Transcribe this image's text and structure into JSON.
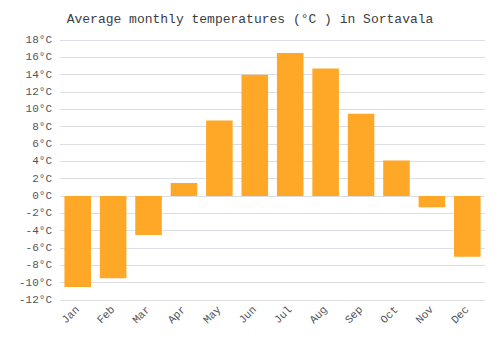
{
  "chart_data": {
    "type": "bar",
    "title": "Average monthly temperatures (°C ) in Sortavala",
    "categories": [
      "Jan",
      "Feb",
      "Mar",
      "Apr",
      "May",
      "Jun",
      "Jul",
      "Aug",
      "Sep",
      "Oct",
      "Nov",
      "Dec"
    ],
    "values": [
      -10.5,
      -9.5,
      -4.5,
      1.5,
      8.7,
      14.0,
      16.5,
      14.7,
      9.5,
      4.1,
      -1.3,
      -7.0
    ],
    "color": "#FFA726",
    "ylim": [
      -12,
      18
    ],
    "yticks": [
      {
        "value": -12,
        "label": "-12°C"
      },
      {
        "value": -10,
        "label": "-10°C"
      },
      {
        "value": -8,
        "label": "-8°C"
      },
      {
        "value": -6,
        "label": "-6°C"
      },
      {
        "value": -4,
        "label": "-4°C"
      },
      {
        "value": -2,
        "label": "-2°C"
      },
      {
        "value": 0,
        "label": "0°C"
      },
      {
        "value": 2,
        "label": "2°C"
      },
      {
        "value": 4,
        "label": "4°C"
      },
      {
        "value": 6,
        "label": "6°C"
      },
      {
        "value": 8,
        "label": "8°C"
      },
      {
        "value": 10,
        "label": "10°C"
      },
      {
        "value": 12,
        "label": "12°C"
      },
      {
        "value": 14,
        "label": "14°C"
      },
      {
        "value": 16,
        "label": "16°C"
      },
      {
        "value": 18,
        "label": "18°C"
      }
    ],
    "grid": true
  }
}
